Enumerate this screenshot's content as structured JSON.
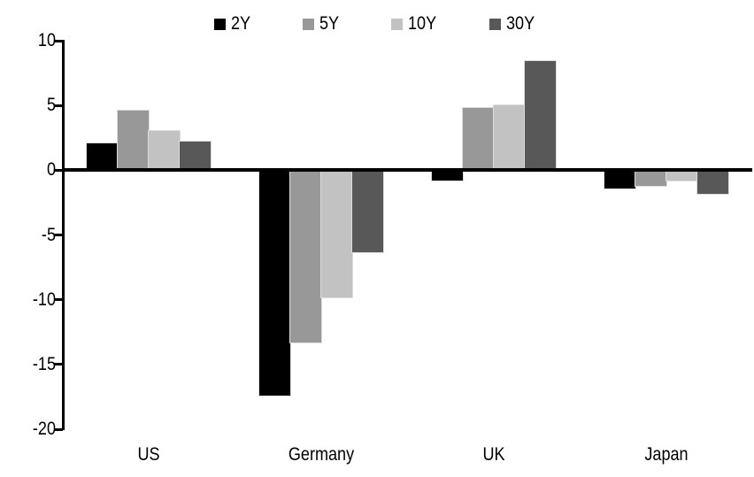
{
  "chart_data": {
    "type": "bar",
    "title": "",
    "categories": [
      "US",
      "Germany",
      "UK",
      "Japan"
    ],
    "series": [
      {
        "name": "2Y",
        "color": "#000000",
        "values": [
          2.1,
          -17.4,
          -0.8,
          -1.4
        ]
      },
      {
        "name": "5Y",
        "color": "#989898",
        "values": [
          4.6,
          -13.3,
          4.8,
          -1.2
        ]
      },
      {
        "name": "10Y",
        "color": "#c2c2c2",
        "values": [
          3.0,
          -9.8,
          5.0,
          -0.8
        ]
      },
      {
        "name": "30Y",
        "color": "#585858",
        "values": [
          2.2,
          -6.3,
          8.4,
          -1.8
        ]
      }
    ],
    "ylim": [
      -20,
      10
    ],
    "yticks": [
      10,
      5,
      0,
      -5,
      -10,
      -15,
      -20
    ],
    "ytick_interval": 5,
    "xlabel": "",
    "ylabel": "",
    "legend_position": "top",
    "grid": false,
    "axis_color": "#000000",
    "background_color": "#ffffff",
    "bar_outline_color": "#dcdcdc"
  }
}
